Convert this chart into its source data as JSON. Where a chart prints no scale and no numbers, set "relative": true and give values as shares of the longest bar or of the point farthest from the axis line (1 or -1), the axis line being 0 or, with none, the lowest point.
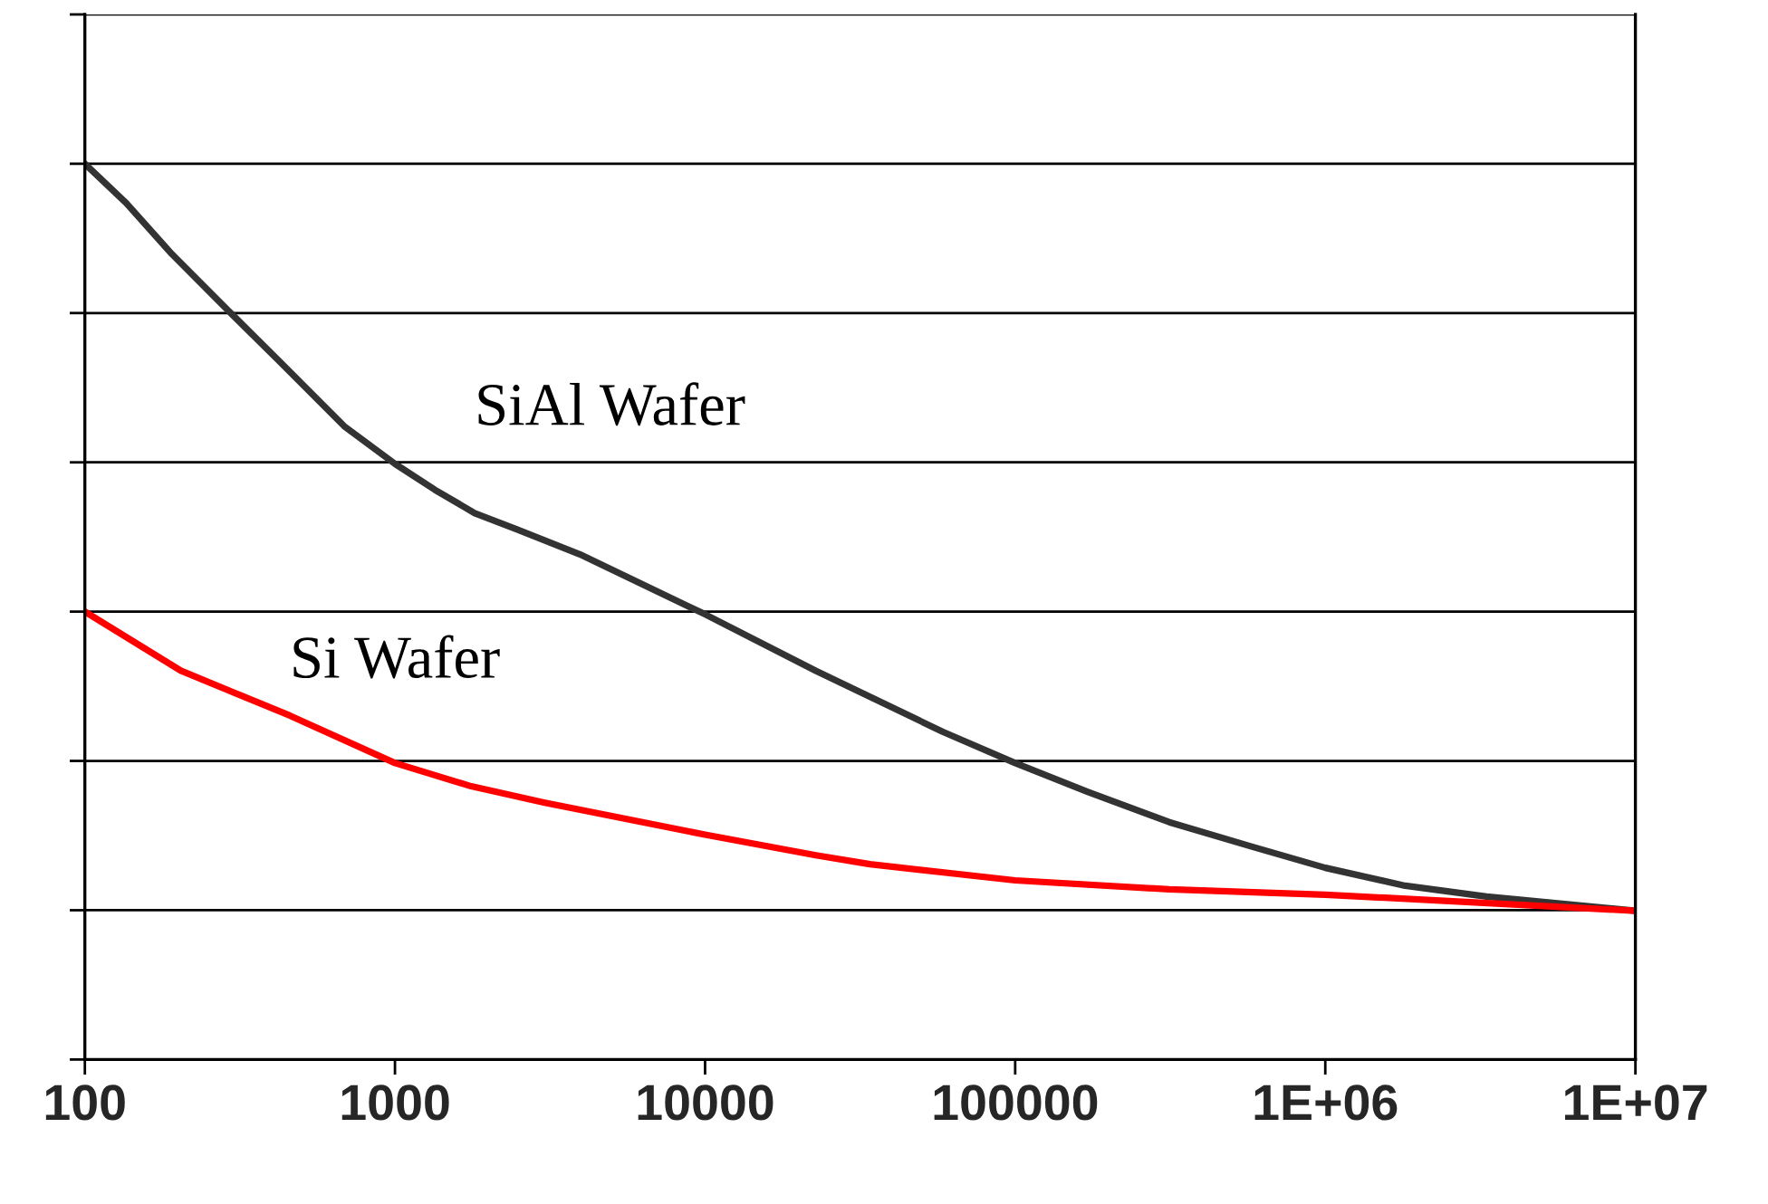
{
  "chart_data": {
    "type": "line",
    "relative": true,
    "log": "x",
    "grid": "y",
    "legend": false,
    "marker": "none",
    "line_style": "solid",
    "xlim": [
      100,
      10000000
    ],
    "xticks": [
      100,
      1000,
      10000,
      100000,
      {
        "value": 1000000,
        "label": "1E+06"
      },
      {
        "value": 10000000,
        "label": "1E+07"
      }
    ],
    "series": [
      {
        "name": "SiAl Wafer",
        "color": "#333333",
        "x": [
          100,
          136,
          191,
          298,
          428,
          686,
          1000,
          1345,
          1807,
          2466,
          3945,
          10000,
          22750,
          58300,
          100000,
          171000,
          314000,
          575000,
          1000000,
          1810000,
          3310000,
          10000000
        ],
        "values": [
          1,
          0.956,
          0.899,
          0.832,
          0.778,
          0.707,
          0.665,
          0.636,
          0.61,
          0.592,
          0.564,
          0.497,
          0.434,
          0.366,
          0.331,
          0.299,
          0.265,
          0.238,
          0.214,
          0.194,
          0.182,
          0.166
        ]
      },
      {
        "name": "Si Wafer",
        "color": "#ff0000",
        "x": [
          100,
          204,
          458,
          1000,
          1762,
          3020,
          10000,
          22750,
          34000,
          100000,
          314000,
          1000000,
          10000000
        ],
        "values": [
          0.5,
          0.434,
          0.384,
          0.331,
          0.305,
          0.287,
          0.251,
          0.228,
          0.218,
          0.2,
          0.19,
          0.184,
          0.166
        ]
      }
    ]
  }
}
